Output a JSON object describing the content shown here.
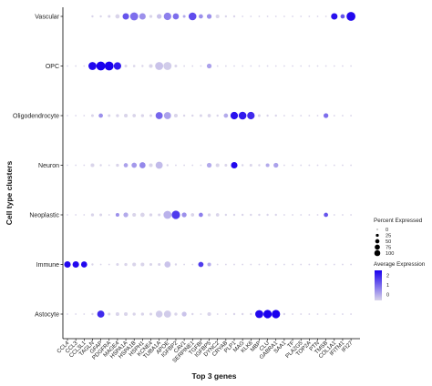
{
  "chart_data": {
    "type": "dotplot",
    "xlabel": "Top 3 genes",
    "ylabel": "Cell type clusters",
    "rows": [
      "Vascular",
      "OPC",
      "Oligodendrocyte",
      "Neuron",
      "Neoplastic",
      "Immune",
      "Astocyte"
    ],
    "genes": [
      "CCL4",
      "CCL3",
      "CCL3L1",
      "TAGLN",
      "GFAP",
      "PDGFRA",
      "MAGE4",
      "HSPA1A",
      "HSPA1B",
      "HSPH1",
      "KCNE4",
      "TUBA1A",
      "APOE",
      "IGFBP2",
      "CAV1",
      "SERPINE1",
      "TGFBI",
      "IGFBP5",
      "DYNC2",
      "CRYAB",
      "PLP1",
      "MAG",
      "KLK6",
      "MBP",
      "CLU",
      "GABRA1",
      "SAA1",
      "TF",
      "PLA2G5",
      "TOP2A",
      "PTN",
      "TMSB",
      "COL1A1",
      "IFITM1",
      "IFI27"
    ],
    "size_scale": [
      0,
      100
    ],
    "color_scale": [
      -1,
      2.5
    ],
    "dots": {
      "Vascular": [
        [
          3,
          5
        ],
        [
          4,
          5
        ],
        [
          5,
          8
        ],
        [
          6,
          20
        ],
        [
          7,
          45
        ],
        [
          8,
          70
        ],
        [
          9,
          45
        ],
        [
          10,
          10
        ],
        [
          11,
          25
        ],
        [
          12,
          60
        ],
        [
          13,
          40
        ],
        [
          14,
          8
        ],
        [
          15,
          65
        ],
        [
          16,
          20
        ],
        [
          17,
          25
        ],
        [
          18,
          15
        ],
        [
          19,
          5
        ],
        [
          20,
          5
        ],
        [
          21,
          2
        ],
        [
          22,
          1
        ],
        [
          23,
          1
        ],
        [
          24,
          1
        ],
        [
          25,
          1
        ],
        [
          26,
          1
        ],
        [
          27,
          1
        ],
        [
          28,
          1
        ],
        [
          29,
          1
        ],
        [
          30,
          1
        ],
        [
          31,
          1
        ],
        [
          32,
          45
        ],
        [
          33,
          20
        ],
        [
          34,
          85
        ]
      ],
      "OPC": [
        [
          0,
          1
        ],
        [
          1,
          1
        ],
        [
          2,
          1
        ],
        [
          3,
          70
        ],
        [
          4,
          85
        ],
        [
          5,
          85
        ],
        [
          6,
          60
        ],
        [
          7,
          8
        ],
        [
          8,
          6
        ],
        [
          9,
          5
        ],
        [
          10,
          15
        ],
        [
          11,
          70
        ],
        [
          12,
          70
        ],
        [
          13,
          8
        ],
        [
          14,
          3
        ],
        [
          15,
          3
        ],
        [
          16,
          3
        ],
        [
          17,
          25
        ],
        [
          18,
          3
        ],
        [
          19,
          3
        ],
        [
          20,
          2
        ],
        [
          21,
          2
        ],
        [
          22,
          2
        ],
        [
          23,
          2
        ],
        [
          24,
          2
        ],
        [
          25,
          2
        ],
        [
          26,
          2
        ],
        [
          27,
          2
        ],
        [
          28,
          2
        ],
        [
          29,
          2
        ],
        [
          30,
          2
        ],
        [
          31,
          2
        ],
        [
          32,
          2
        ],
        [
          33,
          2
        ],
        [
          34,
          2
        ]
      ],
      "Oligodendrocyte": [
        [
          0,
          2
        ],
        [
          1,
          2
        ],
        [
          2,
          2
        ],
        [
          3,
          8
        ],
        [
          4,
          20
        ],
        [
          5,
          8
        ],
        [
          6,
          10
        ],
        [
          7,
          15
        ],
        [
          8,
          12
        ],
        [
          9,
          10
        ],
        [
          10,
          8
        ],
        [
          11,
          55
        ],
        [
          12,
          55
        ],
        [
          13,
          15
        ],
        [
          14,
          5
        ],
        [
          15,
          5
        ],
        [
          16,
          8
        ],
        [
          17,
          12
        ],
        [
          18,
          5
        ],
        [
          19,
          20
        ],
        [
          20,
          60
        ],
        [
          21,
          65
        ],
        [
          22,
          60
        ],
        [
          23,
          8
        ],
        [
          24,
          5
        ],
        [
          25,
          5
        ],
        [
          26,
          3
        ],
        [
          27,
          3
        ],
        [
          28,
          3
        ],
        [
          29,
          3
        ],
        [
          30,
          3
        ],
        [
          31,
          25
        ],
        [
          32,
          3
        ],
        [
          33,
          3
        ],
        [
          34,
          3
        ]
      ],
      "Neuron": [
        [
          0,
          2
        ],
        [
          1,
          2
        ],
        [
          2,
          2
        ],
        [
          3,
          15
        ],
        [
          4,
          5
        ],
        [
          5,
          3
        ],
        [
          6,
          10
        ],
        [
          7,
          20
        ],
        [
          8,
          30
        ],
        [
          9,
          40
        ],
        [
          10,
          15
        ],
        [
          11,
          55
        ],
        [
          12,
          5
        ],
        [
          13,
          3
        ],
        [
          14,
          3
        ],
        [
          15,
          3
        ],
        [
          16,
          3
        ],
        [
          17,
          25
        ],
        [
          18,
          15
        ],
        [
          19,
          8
        ],
        [
          20,
          45
        ],
        [
          21,
          5
        ],
        [
          22,
          8
        ],
        [
          23,
          5
        ],
        [
          24,
          15
        ],
        [
          25,
          25
        ],
        [
          26,
          3
        ],
        [
          27,
          3
        ],
        [
          28,
          3
        ],
        [
          29,
          3
        ],
        [
          30,
          3
        ],
        [
          31,
          3
        ],
        [
          32,
          3
        ],
        [
          33,
          3
        ],
        [
          34,
          3
        ]
      ],
      "Neoplastic": [
        [
          0,
          2
        ],
        [
          1,
          2
        ],
        [
          2,
          2
        ],
        [
          3,
          10
        ],
        [
          4,
          8
        ],
        [
          5,
          3
        ],
        [
          6,
          15
        ],
        [
          7,
          25
        ],
        [
          8,
          15
        ],
        [
          9,
          20
        ],
        [
          10,
          10
        ],
        [
          11,
          8
        ],
        [
          12,
          70
        ],
        [
          13,
          75
        ],
        [
          14,
          25
        ],
        [
          15,
          12
        ],
        [
          16,
          20
        ],
        [
          17,
          10
        ],
        [
          18,
          12
        ],
        [
          19,
          5
        ],
        [
          20,
          5
        ],
        [
          21,
          5
        ],
        [
          22,
          5
        ],
        [
          23,
          5
        ],
        [
          24,
          5
        ],
        [
          25,
          5
        ],
        [
          26,
          3
        ],
        [
          27,
          3
        ],
        [
          28,
          3
        ],
        [
          29,
          3
        ],
        [
          30,
          3
        ],
        [
          31,
          20
        ],
        [
          32,
          3
        ],
        [
          33,
          3
        ],
        [
          34,
          3
        ]
      ],
      "Immune": [
        [
          0,
          45
        ],
        [
          1,
          45
        ],
        [
          2,
          40
        ],
        [
          3,
          5
        ],
        [
          4,
          3
        ],
        [
          5,
          3
        ],
        [
          6,
          8
        ],
        [
          7,
          10
        ],
        [
          8,
          15
        ],
        [
          9,
          15
        ],
        [
          10,
          8
        ],
        [
          11,
          8
        ],
        [
          12,
          40
        ],
        [
          13,
          5
        ],
        [
          14,
          3
        ],
        [
          15,
          3
        ],
        [
          16,
          30
        ],
        [
          17,
          15
        ],
        [
          18,
          3
        ],
        [
          19,
          3
        ],
        [
          20,
          3
        ],
        [
          21,
          3
        ],
        [
          22,
          3
        ],
        [
          23,
          3
        ],
        [
          24,
          3
        ],
        [
          25,
          3
        ],
        [
          26,
          3
        ],
        [
          27,
          3
        ],
        [
          28,
          3
        ],
        [
          29,
          3
        ],
        [
          30,
          3
        ],
        [
          31,
          3
        ],
        [
          32,
          3
        ],
        [
          33,
          3
        ],
        [
          34,
          3
        ]
      ],
      "Astocyte": [
        [
          0,
          2
        ],
        [
          1,
          2
        ],
        [
          2,
          2
        ],
        [
          3,
          5
        ],
        [
          4,
          55
        ],
        [
          5,
          8
        ],
        [
          6,
          15
        ],
        [
          7,
          15
        ],
        [
          8,
          10
        ],
        [
          9,
          10
        ],
        [
          10,
          8
        ],
        [
          11,
          50
        ],
        [
          12,
          55
        ],
        [
          13,
          10
        ],
        [
          14,
          25
        ],
        [
          15,
          5
        ],
        [
          16,
          3
        ],
        [
          17,
          15
        ],
        [
          18,
          3
        ],
        [
          19,
          3
        ],
        [
          20,
          5
        ],
        [
          21,
          5
        ],
        [
          22,
          5
        ],
        [
          23,
          70
        ],
        [
          24,
          75
        ],
        [
          25,
          75
        ],
        [
          26,
          5
        ],
        [
          27,
          3
        ],
        [
          28,
          3
        ],
        [
          29,
          3
        ],
        [
          30,
          3
        ],
        [
          31,
          3
        ],
        [
          32,
          3
        ],
        [
          33,
          3
        ],
        [
          34,
          3
        ]
      ]
    },
    "dot_color_expr": {
      "Vascular": [
        [
          7,
          1.5
        ],
        [
          8,
          1.2
        ],
        [
          9,
          0.8
        ],
        [
          11,
          0.2
        ],
        [
          12,
          1.0
        ],
        [
          13,
          1.2
        ],
        [
          14,
          0.5
        ],
        [
          15,
          1.6
        ],
        [
          16,
          0.8
        ],
        [
          17,
          0.8
        ],
        [
          32,
          2.3
        ],
        [
          33,
          1.5
        ],
        [
          34,
          2.4
        ]
      ],
      "OPC": [
        [
          3,
          2.4
        ],
        [
          4,
          2.5
        ],
        [
          5,
          2.5
        ],
        [
          6,
          2.2
        ],
        [
          11,
          0.2
        ],
        [
          12,
          0.1
        ],
        [
          17,
          0.6
        ]
      ],
      "Oligodendrocyte": [
        [
          4,
          0.8
        ],
        [
          11,
          1.3
        ],
        [
          12,
          0.6
        ],
        [
          19,
          0.5
        ],
        [
          20,
          2.3
        ],
        [
          21,
          2.2
        ],
        [
          22,
          2.0
        ],
        [
          31,
          1.2
        ]
      ],
      "Neuron": [
        [
          7,
          0.6
        ],
        [
          8,
          0.7
        ],
        [
          9,
          0.9
        ],
        [
          11,
          0.3
        ],
        [
          17,
          0.5
        ],
        [
          20,
          2.4
        ],
        [
          24,
          0.5
        ],
        [
          25,
          0.6
        ]
      ],
      "Neoplastic": [
        [
          6,
          0.8
        ],
        [
          7,
          0.5
        ],
        [
          12,
          0.4
        ],
        [
          13,
          1.8
        ],
        [
          14,
          0.8
        ],
        [
          16,
          1.0
        ],
        [
          31,
          1.5
        ]
      ],
      "Immune": [
        [
          0,
          2.4
        ],
        [
          1,
          2.4
        ],
        [
          2,
          2.4
        ],
        [
          12,
          0.2
        ],
        [
          16,
          1.8
        ],
        [
          17,
          0.5
        ]
      ],
      "Astocyte": [
        [
          4,
          2.0
        ],
        [
          11,
          0.1
        ],
        [
          12,
          0.1
        ],
        [
          14,
          0.2
        ],
        [
          23,
          2.4
        ],
        [
          24,
          2.5
        ],
        [
          25,
          2.5
        ]
      ]
    },
    "legend_size": {
      "title": "Percent Expressed",
      "labels": [
        "0",
        "25",
        "50",
        "75",
        "100"
      ],
      "values": [
        0,
        25,
        50,
        75,
        100
      ]
    },
    "legend_color": {
      "title": "Average Expression",
      "labels": [
        "2",
        "1",
        "0"
      ],
      "values": [
        2,
        1,
        0
      ],
      "low_color": "#d9d4ea",
      "high_color": "#1a00ee"
    }
  }
}
